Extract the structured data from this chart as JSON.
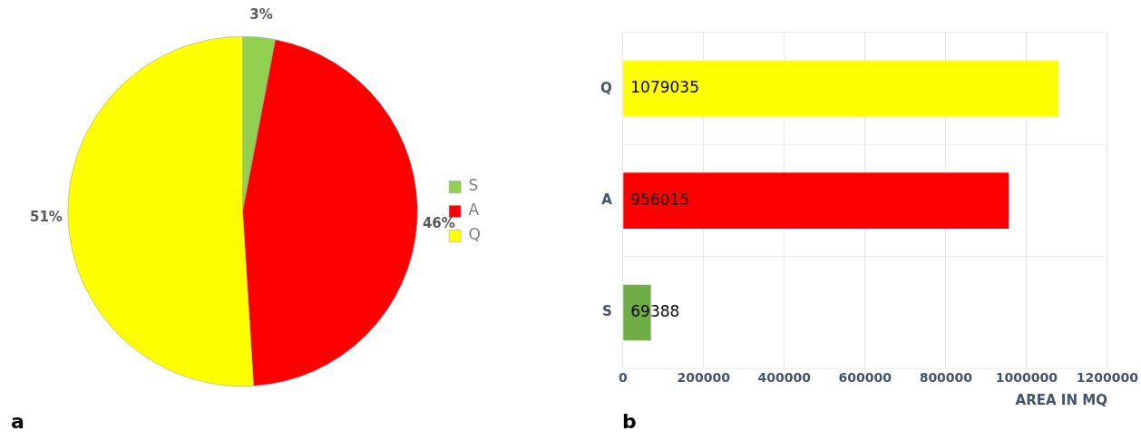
{
  "chart_data": [
    {
      "type": "pie",
      "categories": [
        "S",
        "A",
        "Q"
      ],
      "values": [
        3,
        46,
        51
      ],
      "colors": [
        "#92d050",
        "#ff0000",
        "#ffff00"
      ],
      "value_labels": [
        "3%",
        "46%",
        "51%"
      ],
      "legend": "right",
      "annotations": [
        "a"
      ]
    },
    {
      "type": "bar",
      "orientation": "horizontal",
      "categories": [
        "Q",
        "A",
        "S"
      ],
      "values": [
        1079035,
        956015,
        69388
      ],
      "colors": [
        "#ffff00",
        "#ff0000",
        "#70ad47"
      ],
      "xlim": [
        0,
        1200000
      ],
      "xticks": [
        0,
        200000,
        400000,
        600000,
        800000,
        1000000,
        1200000
      ],
      "xlabel": "AREA IN MQ",
      "grid": true,
      "data_labels": true,
      "annotations": [
        "b"
      ]
    }
  ]
}
